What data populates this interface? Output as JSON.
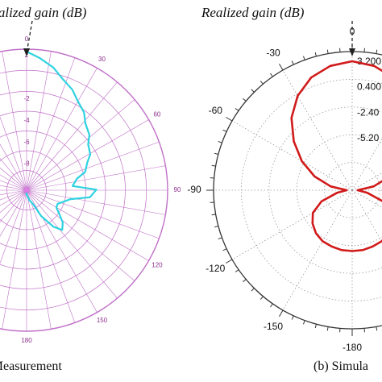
{
  "chart_data": [
    {
      "type": "polar-line",
      "title": "Realized gain (dB)",
      "caption": "(a) Measurement",
      "angle_ticks": [
        "0",
        "30",
        "60",
        "90",
        "120",
        "150",
        "180"
      ],
      "radial_ticks": [
        "2",
        "-2",
        "-4",
        "-6",
        "-8"
      ],
      "grid": true,
      "colors": {
        "series": "#2ed3e0",
        "grid": "#c070c8",
        "tick": "#8c2f8c"
      },
      "series": [
        {
          "angle_deg": [
            0,
            6,
            12,
            18,
            24,
            30,
            36,
            42,
            48,
            54,
            60,
            66,
            72,
            78,
            84,
            90,
            96,
            102,
            108,
            114,
            120,
            126,
            132,
            138,
            144,
            150,
            156,
            162,
            168,
            174,
            180
          ],
          "gain_db": [
            1.8,
            1.2,
            0.6,
            -0.2,
            -0.8,
            -1.5,
            -2.1,
            -2.8,
            -3.3,
            -3.9,
            -4.3,
            -4.8,
            -5.4,
            -6.2,
            -6.8,
            -4.5,
            -5.2,
            -6.8,
            -7.6,
            -7.8,
            -7.9,
            -7.2,
            -6.6,
            -6.0,
            -6.9,
            -8.2,
            -9.6,
            -10.0,
            -10.2,
            -10.6,
            -11.0
          ]
        }
      ]
    },
    {
      "type": "polar-line",
      "title": "Realized gain (dB)",
      "caption": "(b) Simula",
      "angle_ticks": [
        "0",
        "-30",
        "-60",
        "-90",
        "-120",
        "-150",
        "-180"
      ],
      "radial_ticks": [
        "3.200",
        "0.400",
        "-2.40",
        "-5.20"
      ],
      "grid": true,
      "colors": {
        "series": "#d11a1a",
        "grid": "#9a9a9a",
        "axis": "#333333"
      },
      "series": [
        {
          "angle_deg": [
            0,
            -10,
            -20,
            -30,
            -40,
            -50,
            -60,
            -70,
            -80,
            -90,
            -100,
            -110,
            -120,
            -130,
            -140,
            -150,
            -160,
            -170,
            -180
          ],
          "gain_db": [
            3.2,
            2.9,
            2.2,
            1.0,
            -0.6,
            -2.6,
            -4.6,
            -6.6,
            -8.6,
            -10.4,
            -9.3,
            -7.4,
            -6.0,
            -5.3,
            -4.8,
            -4.5,
            -4.4,
            -4.3,
            -4.3
          ]
        }
      ]
    }
  ]
}
